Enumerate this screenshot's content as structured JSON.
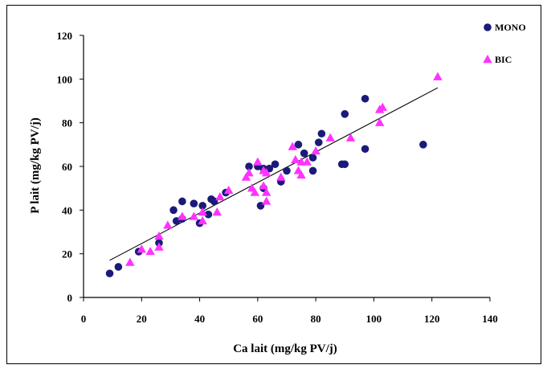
{
  "chart_data": {
    "type": "scatter",
    "title": "",
    "xlabel": "Ca lait (mg/kg PV/j)",
    "ylabel": "P lait (mg/kg PV/j)",
    "xlim": [
      0,
      140
    ],
    "ylim": [
      0,
      120
    ],
    "xticks": [
      "0",
      "20",
      "40",
      "60",
      "80",
      "100",
      "120",
      "140"
    ],
    "yticks": [
      "0",
      "20",
      "40",
      "60",
      "80",
      "100",
      "120"
    ],
    "grid": false,
    "legend_position": "top-right",
    "trendline": {
      "x": [
        9,
        122
      ],
      "y": [
        17,
        96
      ]
    },
    "series": [
      {
        "name": "MONO",
        "marker": "circle",
        "color": "#1a1a7a",
        "points": [
          [
            9,
            11
          ],
          [
            12,
            14
          ],
          [
            19,
            21
          ],
          [
            26,
            25
          ],
          [
            31,
            40
          ],
          [
            32,
            35
          ],
          [
            34,
            36
          ],
          [
            34,
            44
          ],
          [
            38,
            43
          ],
          [
            40,
            34
          ],
          [
            41,
            42
          ],
          [
            43,
            38
          ],
          [
            44,
            45
          ],
          [
            45,
            44
          ],
          [
            49,
            48
          ],
          [
            57,
            60
          ],
          [
            60,
            60
          ],
          [
            61,
            42
          ],
          [
            62,
            50
          ],
          [
            62,
            59
          ],
          [
            64,
            59
          ],
          [
            66,
            61
          ],
          [
            68,
            53
          ],
          [
            70,
            58
          ],
          [
            74,
            70
          ],
          [
            76,
            66
          ],
          [
            79,
            64
          ],
          [
            79,
            58
          ],
          [
            81,
            71
          ],
          [
            82,
            75
          ],
          [
            89,
            61
          ],
          [
            90,
            61
          ],
          [
            90,
            84
          ],
          [
            97,
            91
          ],
          [
            97,
            68
          ],
          [
            117,
            70
          ]
        ]
      },
      {
        "name": "BIC",
        "marker": "triangle",
        "color": "#ff33ff",
        "points": [
          [
            16,
            16
          ],
          [
            20,
            22
          ],
          [
            23,
            21
          ],
          [
            26,
            23
          ],
          [
            26,
            28
          ],
          [
            29,
            33
          ],
          [
            34,
            37
          ],
          [
            38,
            37
          ],
          [
            41,
            35
          ],
          [
            41,
            39
          ],
          [
            46,
            39
          ],
          [
            47,
            46
          ],
          [
            50,
            49
          ],
          [
            56,
            55
          ],
          [
            57,
            57
          ],
          [
            58,
            50
          ],
          [
            59,
            48
          ],
          [
            60,
            62
          ],
          [
            62,
            58
          ],
          [
            62,
            51
          ],
          [
            63,
            57
          ],
          [
            63,
            44
          ],
          [
            63,
            48
          ],
          [
            68,
            55
          ],
          [
            72,
            69
          ],
          [
            73,
            63
          ],
          [
            74,
            58
          ],
          [
            75,
            56
          ],
          [
            75,
            62
          ],
          [
            77,
            62
          ],
          [
            80,
            67
          ],
          [
            85,
            73
          ],
          [
            92,
            73
          ],
          [
            102,
            80
          ],
          [
            102,
            86
          ],
          [
            103,
            87
          ],
          [
            122,
            101
          ]
        ]
      }
    ]
  }
}
